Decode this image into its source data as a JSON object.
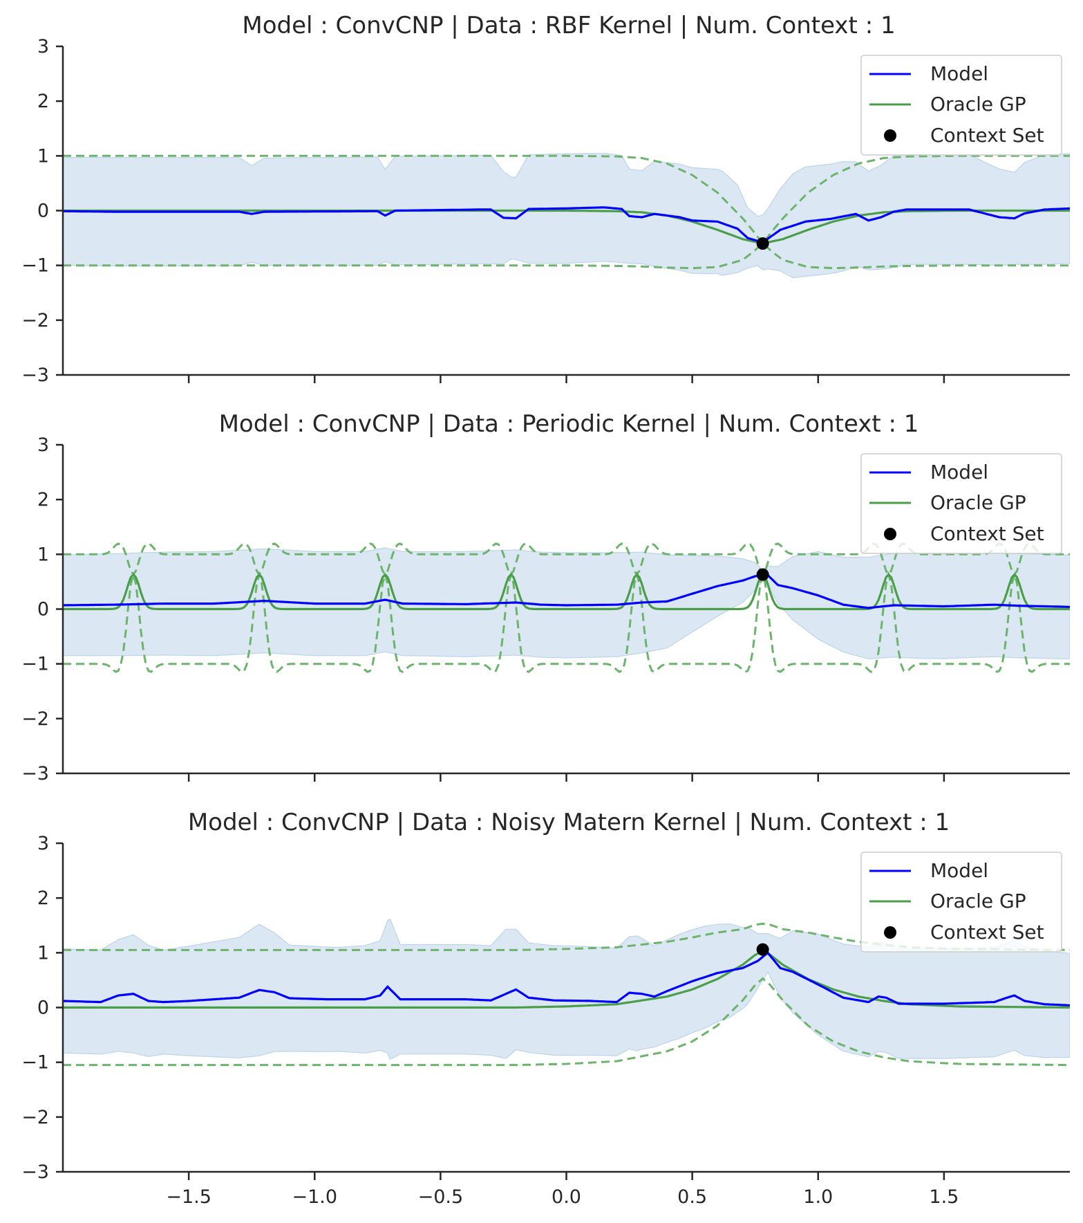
{
  "figure": {
    "background": "#ffffff"
  },
  "colors": {
    "model": "#0000ff",
    "oracle": "#4a9e4a",
    "oracle_band": "#6cb46c",
    "fill": "#cfe0ef",
    "context": "#000000",
    "axis": "#262626"
  },
  "legend": {
    "model_label": "Model",
    "oracle_label": "Oracle GP",
    "context_label": "Context Set"
  },
  "chart_data": [
    {
      "type": "line",
      "title": "Model : ConvCNP | Data : RBF Kernel | Num. Context : 1",
      "xlim": [
        -2.0,
        2.0
      ],
      "ylim": [
        -3,
        3
      ],
      "yticks": [
        3,
        2,
        1,
        0,
        -1,
        -2,
        -3
      ],
      "ytick_labels": [
        "3",
        "2",
        "1",
        "0",
        "−1",
        "−2",
        "−3"
      ],
      "xticks": [
        -1.5,
        -1.0,
        -0.5,
        0.0,
        0.5,
        1.0,
        1.5
      ],
      "xtick_labels": [],
      "legend": "top-right",
      "grid": false,
      "context_set": [
        {
          "x": 0.78,
          "y": -0.6
        }
      ],
      "series": [
        {
          "name": "Model",
          "x": [
            -2.0,
            -1.8,
            -1.3,
            -1.25,
            -1.2,
            -0.75,
            -0.72,
            -0.68,
            -0.35,
            -0.3,
            -0.25,
            -0.2,
            -0.15,
            0.0,
            0.15,
            0.22,
            0.25,
            0.3,
            0.35,
            0.45,
            0.5,
            0.6,
            0.68,
            0.72,
            0.78,
            0.85,
            0.95,
            1.05,
            1.15,
            1.2,
            1.25,
            1.3,
            1.35,
            1.5,
            1.6,
            1.72,
            1.78,
            1.82,
            1.9,
            2.0
          ],
          "y": [
            -0.01,
            -0.02,
            -0.02,
            -0.06,
            -0.02,
            -0.01,
            -0.09,
            0.0,
            0.02,
            0.02,
            -0.13,
            -0.14,
            0.03,
            0.04,
            0.06,
            0.03,
            -0.1,
            -0.12,
            -0.06,
            -0.12,
            -0.18,
            -0.2,
            -0.33,
            -0.5,
            -0.58,
            -0.35,
            -0.2,
            -0.15,
            -0.06,
            -0.18,
            -0.12,
            -0.02,
            0.02,
            0.02,
            0.02,
            -0.12,
            -0.14,
            -0.05,
            0.02,
            0.04
          ]
        },
        {
          "name": "Model std",
          "x": [
            -2.0,
            -1.9,
            -1.3,
            -1.25,
            -1.2,
            -0.75,
            -0.72,
            -0.68,
            -0.3,
            -0.22,
            -0.2,
            -0.15,
            0.0,
            0.22,
            0.25,
            0.3,
            0.35,
            0.45,
            0.55,
            0.62,
            0.68,
            0.72,
            0.76,
            0.8,
            0.85,
            0.9,
            0.95,
            1.0,
            1.1,
            1.2,
            1.25,
            1.3,
            1.35,
            1.5,
            1.6,
            1.72,
            1.78,
            1.82,
            1.9,
            2.0
          ],
          "y": [
            0.98,
            0.99,
            0.99,
            0.88,
            0.98,
            0.99,
            0.84,
            0.99,
            0.99,
            0.75,
            0.75,
            0.99,
            1.0,
            0.98,
            0.86,
            0.85,
            0.96,
            0.97,
            0.96,
            0.95,
            0.8,
            0.55,
            0.45,
            0.55,
            0.75,
            0.95,
            1.0,
            1.0,
            1.0,
            0.9,
            0.95,
            1.02,
            1.0,
            1.0,
            1.0,
            0.88,
            0.84,
            0.93,
            1.0,
            1.0
          ]
        },
        {
          "name": "Oracle GP",
          "x": [
            -2.0,
            0.0,
            0.2,
            0.3,
            0.4,
            0.5,
            0.6,
            0.7,
            0.78,
            0.86,
            0.96,
            1.06,
            1.16,
            1.26,
            1.36,
            1.56,
            2.0
          ],
          "y": [
            0.0,
            0.0,
            -0.01,
            -0.03,
            -0.09,
            -0.2,
            -0.35,
            -0.52,
            -0.6,
            -0.52,
            -0.35,
            -0.2,
            -0.09,
            -0.03,
            -0.01,
            0.0,
            0.0
          ]
        },
        {
          "name": "Oracle GP std",
          "x": [
            -2.0,
            0.0,
            0.2,
            0.3,
            0.4,
            0.5,
            0.6,
            0.7,
            0.74,
            0.78,
            0.82,
            0.86,
            0.96,
            1.06,
            1.16,
            1.26,
            1.36,
            1.56,
            2.0
          ],
          "y": [
            1.0,
            1.0,
            1.0,
            0.99,
            0.95,
            0.85,
            0.68,
            0.38,
            0.2,
            0.0,
            0.2,
            0.38,
            0.68,
            0.85,
            0.95,
            0.99,
            1.0,
            1.0,
            1.0
          ]
        }
      ]
    },
    {
      "type": "line",
      "title": "Model : ConvCNP | Data : Periodic Kernel | Num. Context : 1",
      "xlim": [
        -2.0,
        2.0
      ],
      "ylim": [
        -3,
        3
      ],
      "yticks": [
        3,
        2,
        1,
        0,
        -1,
        -2,
        -3
      ],
      "ytick_labels": [
        "3",
        "2",
        "1",
        "0",
        "−1",
        "−2",
        "−3"
      ],
      "xticks": [
        -1.5,
        -1.0,
        -0.5,
        0.0,
        0.5,
        1.0,
        1.5
      ],
      "xtick_labels": [],
      "legend": "top-right",
      "grid": false,
      "period": 0.5,
      "peak_offset": 0.78,
      "context_set": [
        {
          "x": 0.78,
          "y": 0.63
        }
      ],
      "series": [
        {
          "name": "Model",
          "x": [
            -2.0,
            -1.8,
            -1.6,
            -1.4,
            -1.2,
            -1.0,
            -0.8,
            -0.72,
            -0.65,
            -0.4,
            -0.2,
            -0.1,
            0.0,
            0.2,
            0.3,
            0.4,
            0.5,
            0.6,
            0.7,
            0.75,
            0.8,
            0.84,
            0.9,
            1.0,
            1.1,
            1.2,
            1.3,
            1.5,
            1.7,
            1.8,
            1.9,
            2.0
          ],
          "y": [
            0.07,
            0.08,
            0.1,
            0.1,
            0.15,
            0.1,
            0.1,
            0.17,
            0.1,
            0.09,
            0.12,
            0.08,
            0.07,
            0.08,
            0.12,
            0.14,
            0.28,
            0.42,
            0.52,
            0.6,
            0.62,
            0.44,
            0.38,
            0.25,
            0.08,
            0.02,
            0.07,
            0.05,
            0.08,
            0.06,
            0.05,
            0.04
          ]
        },
        {
          "name": "Model std",
          "x": [
            -2.0,
            -1.8,
            -1.6,
            -1.4,
            -1.2,
            -1.0,
            -0.8,
            -0.6,
            -0.4,
            -0.2,
            0.0,
            0.2,
            0.3,
            0.4,
            0.5,
            0.6,
            0.7,
            0.75,
            0.78,
            0.82,
            0.9,
            1.0,
            1.2,
            1.4,
            1.6,
            1.8,
            2.0
          ],
          "y": [
            0.92,
            0.93,
            0.94,
            0.95,
            0.95,
            0.95,
            0.95,
            0.95,
            0.96,
            0.96,
            0.96,
            0.95,
            0.92,
            0.85,
            0.7,
            0.55,
            0.4,
            0.25,
            0.1,
            0.25,
            0.58,
            0.8,
            0.93,
            0.96,
            0.95,
            0.95,
            0.95
          ]
        },
        {
          "name": "Oracle GP",
          "kind": "periodic",
          "baseline": 0.0,
          "peak": 0.63
        },
        {
          "name": "Oracle GP std",
          "kind": "periodic",
          "baseline": 1.0
        }
      ]
    },
    {
      "type": "line",
      "title": "Model : ConvCNP | Data : Noisy Matern Kernel | Num. Context : 1",
      "xlim": [
        -2.0,
        2.0
      ],
      "ylim": [
        -3,
        3
      ],
      "yticks": [
        3,
        2,
        1,
        0,
        -1,
        -2,
        -3
      ],
      "ytick_labels": [
        "3",
        "2",
        "1",
        "0",
        "−1",
        "−2",
        "−3"
      ],
      "xticks": [
        -1.5,
        -1.0,
        -0.5,
        0.0,
        0.5,
        1.0,
        1.5
      ],
      "xtick_labels": [
        "−1.5",
        "−1.0",
        "−0.5",
        "0.0",
        "0.5",
        "1.0",
        "1.5"
      ],
      "legend": "top-right",
      "grid": false,
      "context_set": [
        {
          "x": 0.78,
          "y": 1.06
        }
      ],
      "series": [
        {
          "name": "Model",
          "x": [
            -2.0,
            -1.85,
            -1.78,
            -1.72,
            -1.66,
            -1.6,
            -1.5,
            -1.3,
            -1.22,
            -1.16,
            -1.1,
            -0.95,
            -0.8,
            -0.74,
            -0.71,
            -0.66,
            -0.4,
            -0.3,
            -0.24,
            -0.2,
            -0.15,
            -0.05,
            0.1,
            0.2,
            0.25,
            0.3,
            0.35,
            0.4,
            0.5,
            0.6,
            0.7,
            0.76,
            0.8,
            0.85,
            0.9,
            1.0,
            1.1,
            1.2,
            1.24,
            1.27,
            1.32,
            1.5,
            1.7,
            1.75,
            1.78,
            1.82,
            1.9,
            2.0
          ],
          "y": [
            0.12,
            0.1,
            0.22,
            0.25,
            0.12,
            0.1,
            0.12,
            0.18,
            0.32,
            0.28,
            0.17,
            0.15,
            0.15,
            0.22,
            0.38,
            0.15,
            0.15,
            0.13,
            0.25,
            0.33,
            0.18,
            0.13,
            0.12,
            0.1,
            0.27,
            0.25,
            0.2,
            0.3,
            0.48,
            0.63,
            0.72,
            0.85,
            1.0,
            0.72,
            0.65,
            0.42,
            0.18,
            0.1,
            0.2,
            0.18,
            0.07,
            0.07,
            0.1,
            0.18,
            0.22,
            0.12,
            0.06,
            0.04
          ]
        },
        {
          "name": "Model std",
          "x": [
            -2.0,
            -1.85,
            -1.72,
            -1.6,
            -1.3,
            -1.22,
            -1.1,
            -0.9,
            -0.74,
            -0.7,
            -0.66,
            -0.5,
            -0.3,
            -0.24,
            -0.15,
            0.0,
            0.2,
            0.28,
            0.35,
            0.45,
            0.55,
            0.65,
            0.72,
            0.76,
            0.8,
            0.84,
            0.9,
            1.0,
            1.1,
            1.2,
            1.4,
            1.6,
            1.8,
            2.0
          ],
          "y": [
            0.95,
            0.95,
            1.08,
            0.95,
            1.1,
            1.2,
            0.97,
            0.95,
            1.0,
            1.28,
            1.0,
            1.0,
            1.0,
            1.18,
            1.0,
            1.0,
            0.98,
            1.05,
            0.92,
            0.95,
            0.93,
            0.85,
            0.7,
            0.5,
            0.35,
            0.5,
            0.75,
            0.92,
            0.98,
            1.0,
            1.0,
            1.0,
            1.0,
            0.95
          ]
        },
        {
          "name": "Oracle GP",
          "x": [
            -2.0,
            -0.2,
            0.0,
            0.2,
            0.4,
            0.5,
            0.6,
            0.7,
            0.75,
            0.78,
            0.81,
            0.86,
            0.96,
            1.06,
            1.16,
            1.26,
            1.36,
            1.56,
            2.0
          ],
          "y": [
            0.0,
            0.0,
            0.02,
            0.06,
            0.2,
            0.33,
            0.52,
            0.78,
            0.96,
            1.03,
            0.96,
            0.78,
            0.52,
            0.33,
            0.2,
            0.12,
            0.06,
            0.02,
            0.0
          ]
        },
        {
          "name": "Oracle GP std",
          "x": [
            -2.0,
            -0.2,
            0.0,
            0.2,
            0.4,
            0.5,
            0.6,
            0.7,
            0.75,
            0.78,
            0.81,
            0.86,
            0.96,
            1.06,
            1.16,
            1.26,
            1.36,
            1.56,
            2.0
          ],
          "y": [
            1.05,
            1.05,
            1.05,
            1.04,
            1.0,
            0.95,
            0.85,
            0.65,
            0.55,
            0.5,
            0.55,
            0.65,
            0.85,
            0.95,
            1.0,
            1.03,
            1.04,
            1.05,
            1.05
          ]
        }
      ]
    }
  ]
}
